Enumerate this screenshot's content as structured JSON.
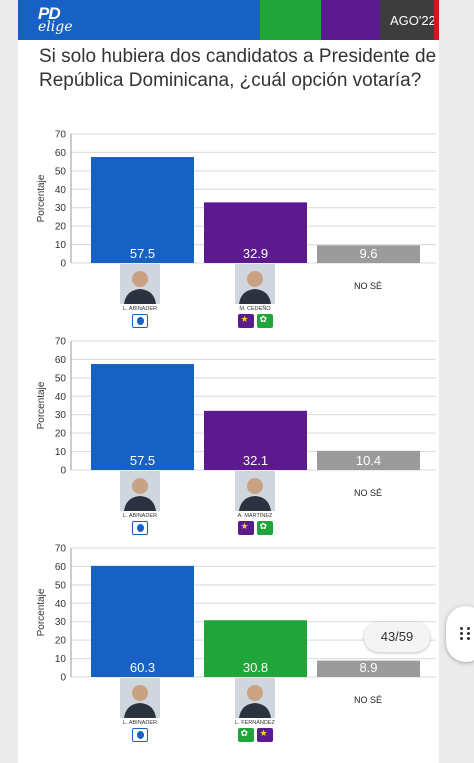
{
  "header": {
    "logo_top": "PD",
    "logo_bottom": "elige",
    "date": "AGO'22",
    "colors": {
      "blue": "#1761c5",
      "green": "#1fa53a",
      "purple": "#5b1a8e",
      "dark": "#3d3d3d",
      "red": "#cc1b1b"
    }
  },
  "headline": "Si solo hubiera dos candidatos a Presidente de República Dominicana, ¿cuál opción votaría?",
  "pager": "43/59",
  "chart_data": [
    {
      "type": "bar",
      "categories": [
        "L. ABINADER",
        "M. CEDEÑO",
        "NO SÉ"
      ],
      "values": [
        57.5,
        32.9,
        9.6
      ],
      "value_labels": [
        "57.5",
        "32.9",
        "9.6"
      ],
      "colors": [
        "#1761c5",
        "#5b1a8e",
        "#9b9b9b"
      ],
      "ylabel": "Porcentaje",
      "ylim": [
        0,
        70
      ],
      "yticks": [
        "0",
        "10",
        "20",
        "30",
        "40",
        "50",
        "60",
        "70"
      ],
      "grid": true,
      "candidates": [
        {
          "name": "L. ABINADER",
          "parties": [
            "prm"
          ]
        },
        {
          "name": "M. CEDEÑO",
          "parties": [
            "pld",
            "fp"
          ]
        }
      ],
      "other_label": "NO SÉ"
    },
    {
      "type": "bar",
      "categories": [
        "L. ABINADER",
        "A. MARTÍNEZ",
        "NO SÉ"
      ],
      "values": [
        57.5,
        32.1,
        10.4
      ],
      "value_labels": [
        "57.5",
        "32.1",
        "10.4"
      ],
      "colors": [
        "#1761c5",
        "#5b1a8e",
        "#9b9b9b"
      ],
      "ylabel": "Porcentaje",
      "ylim": [
        0,
        70
      ],
      "yticks": [
        "0",
        "10",
        "20",
        "30",
        "40",
        "50",
        "60",
        "70"
      ],
      "grid": true,
      "candidates": [
        {
          "name": "L. ABINADER",
          "parties": [
            "prm"
          ]
        },
        {
          "name": "A. MARTÍNEZ",
          "parties": [
            "pld",
            "fp"
          ]
        }
      ],
      "other_label": "NO SÉ"
    },
    {
      "type": "bar",
      "categories": [
        "L. ABINADER",
        "L. FERNÁNDEZ",
        "NO SÉ"
      ],
      "values": [
        60.3,
        30.8,
        8.9
      ],
      "value_labels": [
        "60.3",
        "30.8",
        "8.9"
      ],
      "colors": [
        "#1761c5",
        "#1fa53a",
        "#9b9b9b"
      ],
      "ylabel": "Porcentaje",
      "ylim": [
        0,
        70
      ],
      "yticks": [
        "0",
        "10",
        "20",
        "30",
        "40",
        "50",
        "60",
        "70"
      ],
      "grid": true,
      "candidates": [
        {
          "name": "L. ABINADER",
          "parties": [
            "prm"
          ]
        },
        {
          "name": "L. FERNÁNDEZ",
          "parties": [
            "fp",
            "pld"
          ]
        }
      ],
      "other_label": "NO SÉ"
    }
  ]
}
